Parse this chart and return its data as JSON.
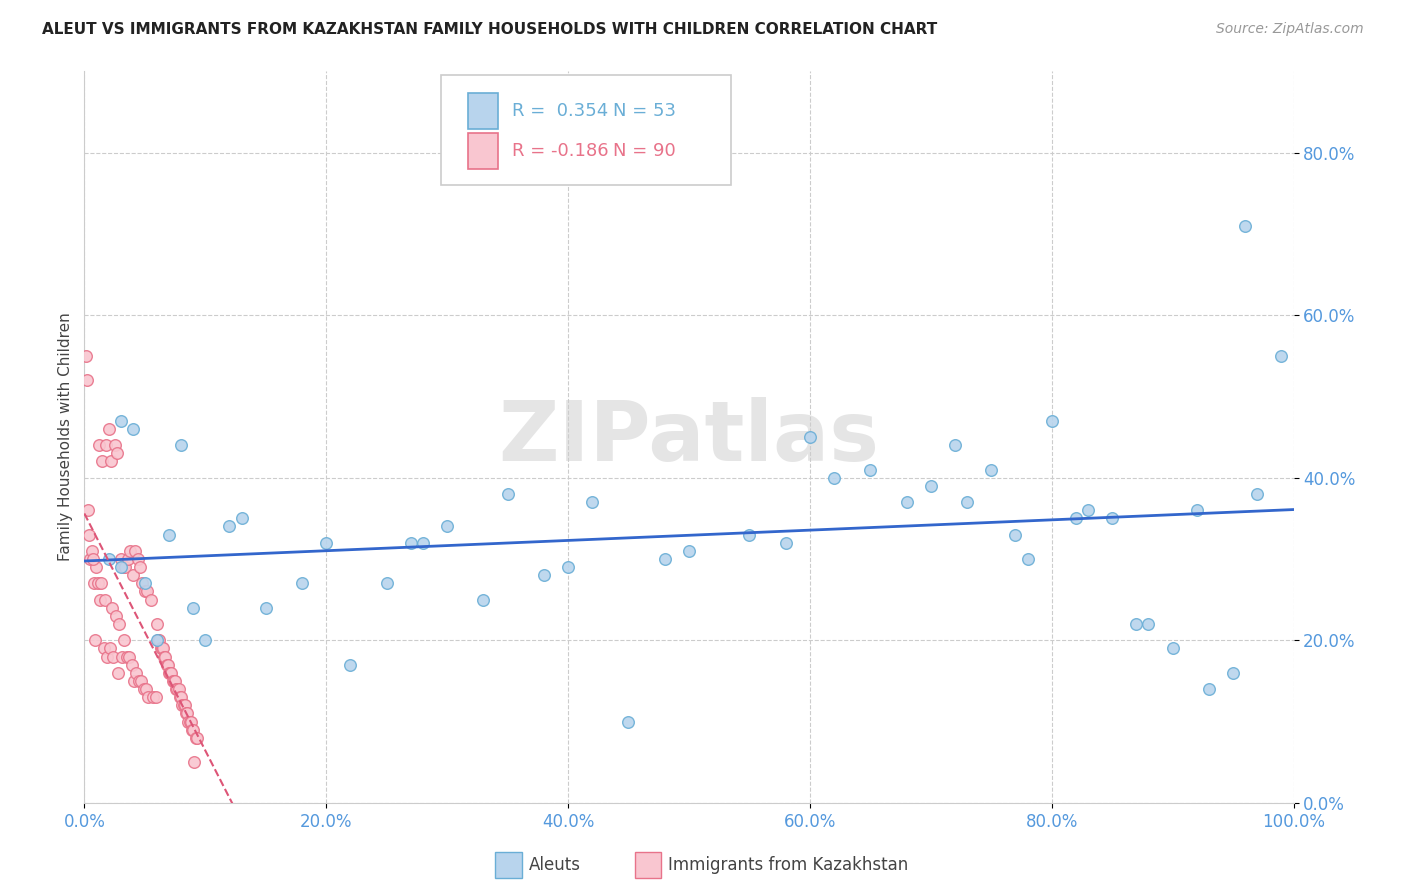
{
  "title": "ALEUT VS IMMIGRANTS FROM KAZAKHSTAN FAMILY HOUSEHOLDS WITH CHILDREN CORRELATION CHART",
  "source": "Source: ZipAtlas.com",
  "ylabel": "Family Households with Children",
  "aleuts_R": 0.354,
  "aleuts_N": 53,
  "kazakhstan_R": -0.186,
  "kazakhstan_N": 90,
  "aleuts_color": "#b8d4ed",
  "aleuts_edge_color": "#6aaed6",
  "kazakhstan_color": "#f9c6d0",
  "kazakhstan_edge_color": "#e8738a",
  "regression_blue_color": "#3366cc",
  "regression_pink_color": "#dd5577",
  "aleuts_x": [
    0.02,
    0.04,
    0.07,
    0.05,
    0.03,
    0.08,
    0.12,
    0.18,
    0.27,
    0.13,
    0.09,
    0.2,
    0.25,
    0.3,
    0.35,
    0.42,
    0.5,
    0.38,
    0.55,
    0.6,
    0.65,
    0.7,
    0.72,
    0.75,
    0.78,
    0.8,
    0.82,
    0.85,
    0.88,
    0.9,
    0.92,
    0.95,
    0.97,
    0.99,
    0.03,
    0.06,
    0.1,
    0.15,
    0.22,
    0.33,
    0.4,
    0.48,
    0.58,
    0.62,
    0.68,
    0.73,
    0.77,
    0.83,
    0.87,
    0.93,
    0.96,
    0.28,
    0.45
  ],
  "aleuts_y": [
    0.3,
    0.46,
    0.33,
    0.27,
    0.29,
    0.44,
    0.34,
    0.27,
    0.32,
    0.35,
    0.24,
    0.32,
    0.27,
    0.34,
    0.38,
    0.37,
    0.31,
    0.28,
    0.33,
    0.45,
    0.41,
    0.39,
    0.44,
    0.41,
    0.3,
    0.47,
    0.35,
    0.35,
    0.22,
    0.19,
    0.36,
    0.16,
    0.38,
    0.55,
    0.47,
    0.2,
    0.2,
    0.24,
    0.17,
    0.25,
    0.29,
    0.3,
    0.32,
    0.4,
    0.37,
    0.37,
    0.33,
    0.36,
    0.22,
    0.14,
    0.71,
    0.32,
    0.1
  ],
  "kazakhstan_x": [
    0.005,
    0.008,
    0.01,
    0.012,
    0.015,
    0.018,
    0.02,
    0.022,
    0.025,
    0.027,
    0.03,
    0.032,
    0.034,
    0.036,
    0.038,
    0.04,
    0.042,
    0.044,
    0.046,
    0.048,
    0.05,
    0.052,
    0.002,
    0.003,
    0.006,
    0.009,
    0.011,
    0.013,
    0.016,
    0.019,
    0.021,
    0.024,
    0.028,
    0.031,
    0.033,
    0.001,
    0.004,
    0.007,
    0.014,
    0.017,
    0.023,
    0.026,
    0.029,
    0.035,
    0.037,
    0.039,
    0.041,
    0.043,
    0.045,
    0.047,
    0.049,
    0.051,
    0.053,
    0.055,
    0.057,
    0.059,
    0.06,
    0.061,
    0.062,
    0.063,
    0.064,
    0.065,
    0.066,
    0.067,
    0.068,
    0.069,
    0.07,
    0.071,
    0.072,
    0.073,
    0.074,
    0.075,
    0.076,
    0.077,
    0.078,
    0.079,
    0.08,
    0.081,
    0.082,
    0.083,
    0.084,
    0.085,
    0.086,
    0.087,
    0.088,
    0.089,
    0.09,
    0.091,
    0.092,
    0.093
  ],
  "kazakhstan_y": [
    0.3,
    0.27,
    0.29,
    0.44,
    0.42,
    0.44,
    0.46,
    0.42,
    0.44,
    0.43,
    0.3,
    0.29,
    0.29,
    0.3,
    0.31,
    0.28,
    0.31,
    0.3,
    0.29,
    0.27,
    0.26,
    0.26,
    0.52,
    0.36,
    0.31,
    0.2,
    0.27,
    0.25,
    0.19,
    0.18,
    0.19,
    0.18,
    0.16,
    0.18,
    0.2,
    0.55,
    0.33,
    0.3,
    0.27,
    0.25,
    0.24,
    0.23,
    0.22,
    0.18,
    0.18,
    0.17,
    0.15,
    0.16,
    0.15,
    0.15,
    0.14,
    0.14,
    0.13,
    0.25,
    0.13,
    0.13,
    0.22,
    0.2,
    0.2,
    0.19,
    0.19,
    0.19,
    0.18,
    0.18,
    0.17,
    0.17,
    0.16,
    0.16,
    0.16,
    0.15,
    0.15,
    0.15,
    0.14,
    0.14,
    0.14,
    0.13,
    0.13,
    0.12,
    0.12,
    0.12,
    0.11,
    0.11,
    0.1,
    0.1,
    0.1,
    0.09,
    0.09,
    0.05,
    0.08,
    0.08
  ],
  "xlim": [
    0.0,
    1.0
  ],
  "ylim": [
    0.0,
    0.9
  ],
  "yticks": [
    0.0,
    0.2,
    0.4,
    0.6,
    0.8
  ],
  "xticks": [
    0.0,
    0.2,
    0.4,
    0.6,
    0.8,
    1.0
  ],
  "watermark": "ZIPatlas",
  "marker_size": 70,
  "background_color": "#ffffff",
  "grid_color": "#cccccc",
  "tick_color": "#5599dd",
  "title_fontsize": 11,
  "source_fontsize": 10
}
